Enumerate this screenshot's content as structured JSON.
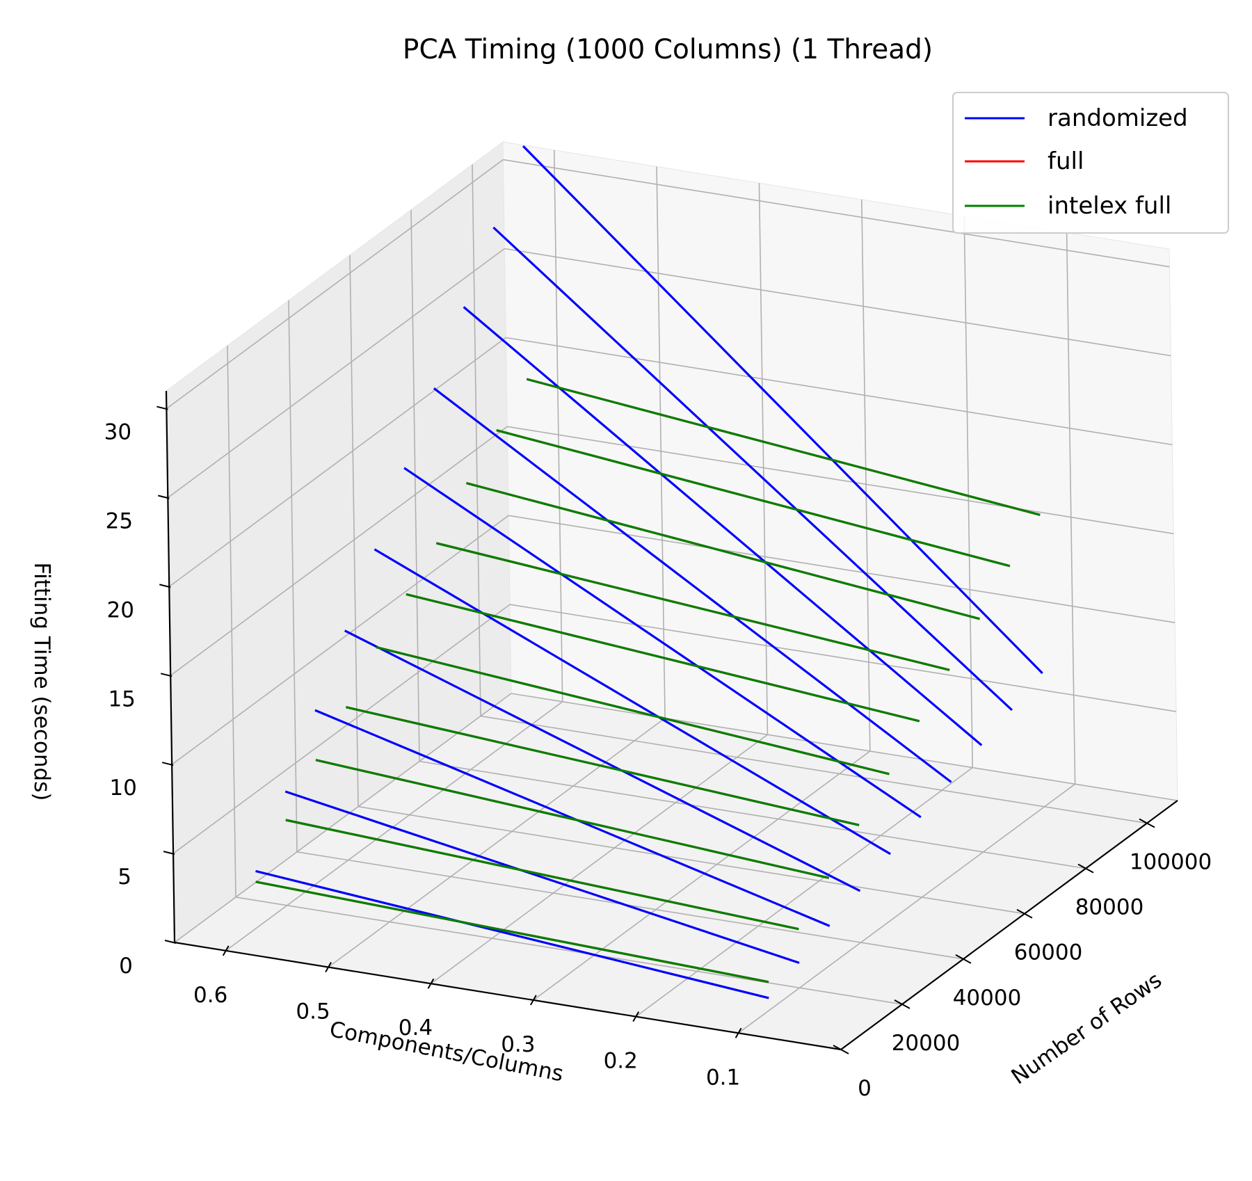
{
  "chart_data": {
    "type": "line",
    "subtype": "3d",
    "title": "PCA Timing (1000 Columns) (1 Thread)",
    "xlabel": "Components/Columns",
    "ylabel": "Number of Rows",
    "zlabel": "Fitting Time (seconds)",
    "xlim": [
      0.0,
      0.65
    ],
    "ylim": [
      0,
      110000
    ],
    "zlim": [
      0,
      31
    ],
    "x_ticks": [
      0.1,
      0.2,
      0.3,
      0.4,
      0.5,
      0.6
    ],
    "x_tick_labels": [
      "0.1",
      "0.2",
      "0.3",
      "0.4",
      "0.5",
      "0.6"
    ],
    "y_ticks": [
      0,
      20000,
      40000,
      60000,
      80000,
      100000
    ],
    "y_tick_labels": [
      "0",
      "20000",
      "40000",
      "60000",
      "80000",
      "100000"
    ],
    "z_ticks": [
      0,
      5,
      10,
      15,
      20,
      25,
      30
    ],
    "z_tick_labels": [
      "0",
      "5",
      "10",
      "15",
      "20",
      "25",
      "30"
    ],
    "rows": [
      10000,
      20000,
      30000,
      40000,
      50000,
      60000,
      70000,
      80000,
      90000,
      100000
    ],
    "components_ratio": [
      0.1,
      0.2,
      0.3,
      0.4,
      0.5,
      0.6
    ],
    "grid": true,
    "legend_position": "top-right",
    "legend": [
      "randomized",
      "full",
      "intelex full"
    ],
    "colors": {
      "randomized": "#0000ff",
      "full": "#ff0000",
      "intelex full": "#008000"
    },
    "series": [
      {
        "name": "randomized",
        "values": [
          [
            0.7,
            1.2,
            1.7,
            2.2,
            2.7,
            3.2
          ],
          [
            1.4,
            2.4,
            3.4,
            4.4,
            5.4,
            6.4
          ],
          [
            2.2,
            3.7,
            5.2,
            6.7,
            8.2,
            9.7
          ],
          [
            2.9,
            4.9,
            6.9,
            8.9,
            10.9,
            12.9
          ],
          [
            3.7,
            6.2,
            8.7,
            11.2,
            13.7,
            16.2
          ],
          [
            4.5,
            7.5,
            10.5,
            13.5,
            16.5,
            19.5
          ],
          [
            5.2,
            8.7,
            12.2,
            15.7,
            19.2,
            22.7
          ],
          [
            6.0,
            10.0,
            14.0,
            18.0,
            22.0,
            26.0
          ],
          [
            6.7,
            11.2,
            15.7,
            20.2,
            24.7,
            29.2
          ],
          [
            7.5,
            12.5,
            17.5,
            22.5,
            27.5,
            32.5
          ]
        ]
      },
      {
        "name": "full",
        "values": [
          [
            1.6,
            1.8,
            2.0,
            2.2,
            2.4,
            2.6
          ],
          [
            3.3,
            3.6,
            3.9,
            4.2,
            4.5,
            4.8
          ],
          [
            4.9,
            5.3,
            5.7,
            6.1,
            6.5,
            6.9
          ],
          [
            6.6,
            7.0,
            7.4,
            7.8,
            8.2,
            8.6
          ],
          [
            8.2,
            8.7,
            9.2,
            9.7,
            10.2,
            10.7
          ],
          [
            9.9,
            10.4,
            10.9,
            11.4,
            11.9,
            12.4
          ],
          [
            11.5,
            12.0,
            12.5,
            13.0,
            13.5,
            14.0
          ],
          [
            13.1,
            13.7,
            14.3,
            14.9,
            15.5,
            16.1
          ],
          [
            14.8,
            15.4,
            16.0,
            16.6,
            17.2,
            17.8
          ],
          [
            16.4,
            17.0,
            17.6,
            18.2,
            18.8,
            19.4
          ]
        ]
      },
      {
        "name": "intelex full",
        "values": [
          [
            1.6,
            1.8,
            2.0,
            2.2,
            2.4,
            2.6
          ],
          [
            3.3,
            3.6,
            3.9,
            4.2,
            4.5,
            4.8
          ],
          [
            4.9,
            5.3,
            5.7,
            6.1,
            6.5,
            6.9
          ],
          [
            6.6,
            7.0,
            7.4,
            7.8,
            8.2,
            8.6
          ],
          [
            8.2,
            8.7,
            9.2,
            9.7,
            10.2,
            10.7
          ],
          [
            9.9,
            10.4,
            10.9,
            11.4,
            11.9,
            12.4
          ],
          [
            11.5,
            12.0,
            12.5,
            13.0,
            13.5,
            14.0
          ],
          [
            13.1,
            13.7,
            14.3,
            14.9,
            15.5,
            16.1
          ],
          [
            14.8,
            15.4,
            16.0,
            16.6,
            17.2,
            17.8
          ],
          [
            16.4,
            17.0,
            17.6,
            18.2,
            18.8,
            19.4
          ]
        ]
      }
    ]
  }
}
